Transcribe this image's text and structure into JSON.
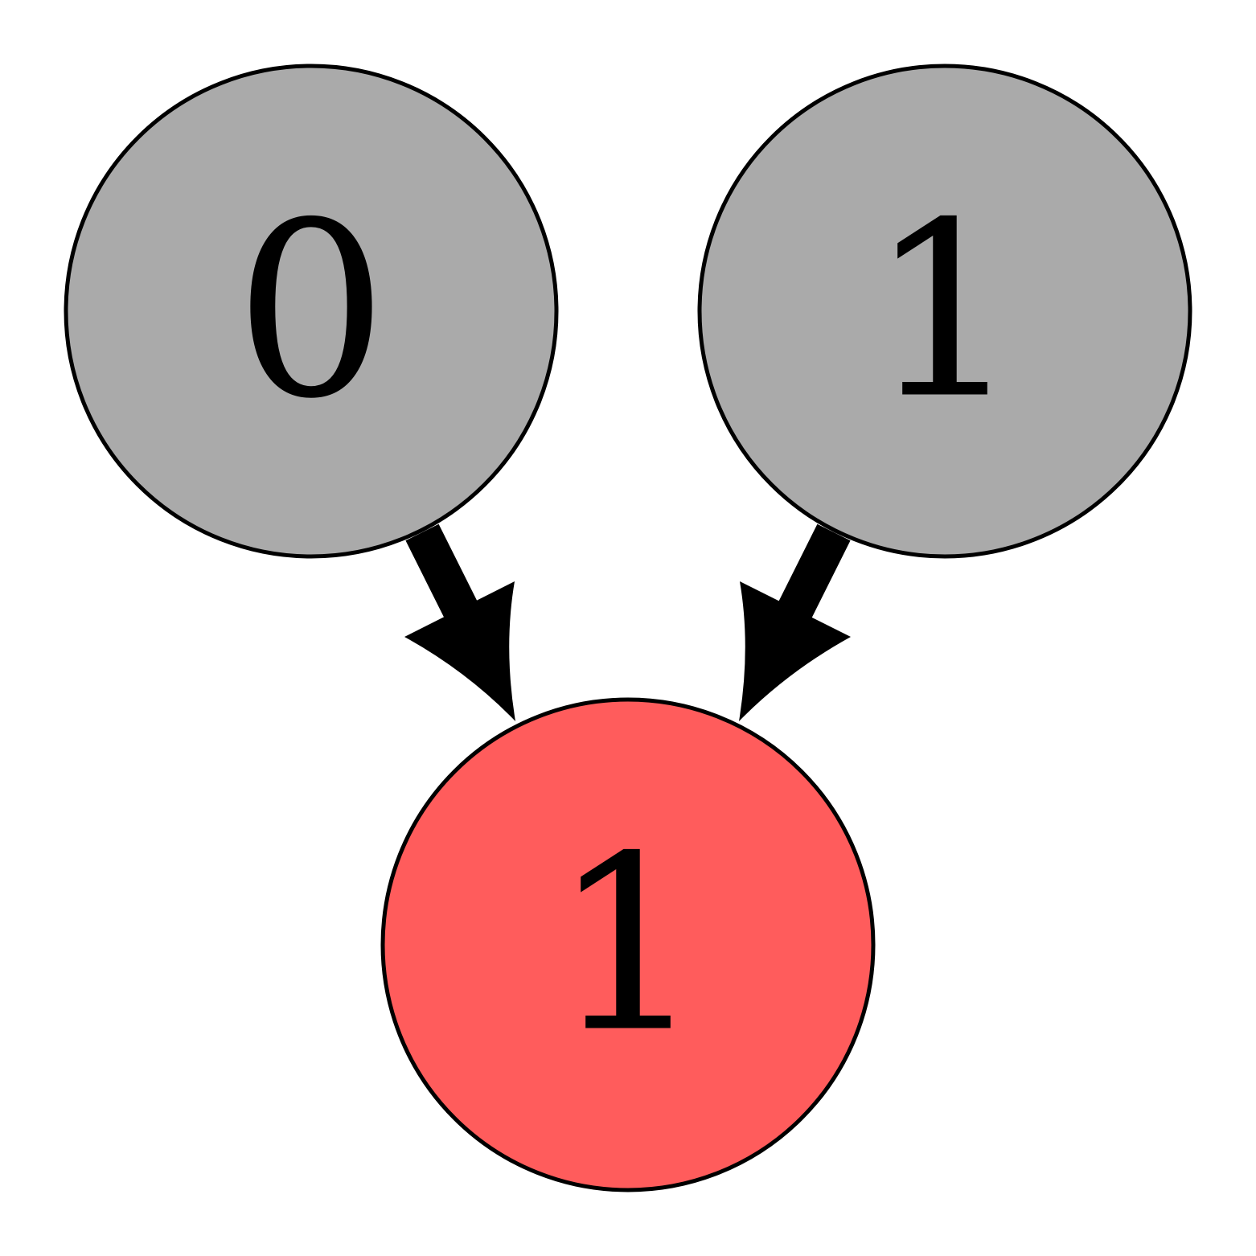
{
  "diagram": {
    "nodes": [
      {
        "id": "n0",
        "label": "0",
        "fill": "#aaaaaa"
      },
      {
        "id": "n1",
        "label": "1",
        "fill": "#aaaaaa"
      },
      {
        "id": "n2",
        "label": "1",
        "fill": "#ff5c5c"
      }
    ],
    "edges": [
      {
        "from": "n0",
        "to": "n2"
      },
      {
        "from": "n1",
        "to": "n2"
      }
    ]
  }
}
